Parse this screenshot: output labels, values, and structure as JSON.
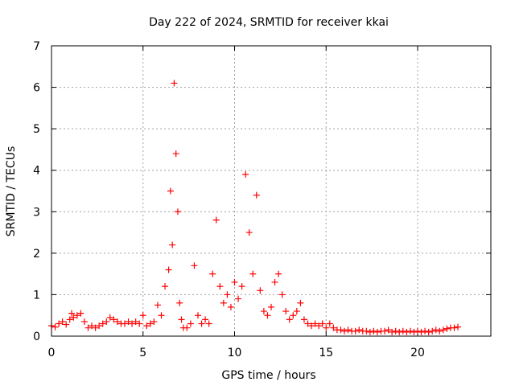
{
  "chart_data": {
    "type": "scatter",
    "title": "Day 222 of 2024, SRMTID for receiver kkai",
    "xlabel": "GPS time / hours",
    "ylabel": "SRMTID / TECUs",
    "xlim": [
      0,
      24
    ],
    "ylim": [
      0,
      7
    ],
    "xticks": [
      0,
      5,
      10,
      15,
      20
    ],
    "yticks": [
      0,
      1,
      2,
      3,
      4,
      5,
      6,
      7
    ],
    "grid": true,
    "marker": "+",
    "series": [
      {
        "name": "SRMTID",
        "color": "#ff0000",
        "x": [
          0.0,
          0.2,
          0.4,
          0.6,
          0.8,
          1.0,
          1.1,
          1.2,
          1.4,
          1.6,
          1.8,
          2.0,
          2.2,
          2.4,
          2.6,
          2.8,
          3.0,
          3.2,
          3.4,
          3.6,
          3.8,
          4.0,
          4.2,
          4.4,
          4.6,
          4.8,
          5.0,
          5.2,
          5.4,
          5.6,
          5.8,
          6.0,
          6.2,
          6.4,
          6.5,
          6.6,
          6.7,
          6.8,
          6.9,
          7.0,
          7.1,
          7.2,
          7.4,
          7.6,
          7.8,
          8.0,
          8.2,
          8.4,
          8.6,
          8.8,
          9.0,
          9.2,
          9.4,
          9.6,
          9.8,
          10.0,
          10.2,
          10.4,
          10.6,
          10.8,
          11.0,
          11.2,
          11.4,
          11.6,
          11.8,
          12.0,
          12.2,
          12.4,
          12.6,
          12.8,
          13.0,
          13.2,
          13.4,
          13.6,
          13.8,
          14.0,
          14.2,
          14.4,
          14.6,
          14.8,
          15.0,
          15.2,
          15.4,
          15.6,
          15.8,
          16.0,
          16.2,
          16.4,
          16.6,
          16.8,
          17.0,
          17.2,
          17.4,
          17.6,
          17.8,
          18.0,
          18.2,
          18.4,
          18.6,
          18.8,
          19.0,
          19.2,
          19.4,
          19.6,
          19.8,
          20.0,
          20.2,
          20.4,
          20.6,
          20.8,
          21.0,
          21.2,
          21.4,
          21.6,
          21.8,
          22.0,
          22.2
        ],
        "y": [
          0.25,
          0.22,
          0.3,
          0.35,
          0.28,
          0.4,
          0.55,
          0.45,
          0.5,
          0.55,
          0.35,
          0.2,
          0.25,
          0.2,
          0.25,
          0.3,
          0.35,
          0.45,
          0.4,
          0.35,
          0.3,
          0.3,
          0.35,
          0.3,
          0.35,
          0.3,
          0.5,
          0.25,
          0.3,
          0.35,
          0.75,
          0.5,
          1.2,
          1.6,
          3.5,
          2.2,
          6.1,
          4.4,
          3.0,
          0.8,
          0.4,
          0.2,
          0.2,
          0.3,
          1.7,
          0.5,
          0.3,
          0.4,
          0.3,
          1.5,
          2.8,
          1.2,
          0.8,
          1.0,
          0.7,
          1.3,
          0.9,
          1.2,
          3.9,
          2.5,
          1.5,
          3.4,
          1.1,
          0.6,
          0.5,
          0.7,
          1.3,
          1.5,
          1.0,
          0.6,
          0.4,
          0.5,
          0.6,
          0.8,
          0.4,
          0.3,
          0.25,
          0.3,
          0.25,
          0.3,
          0.2,
          0.3,
          0.2,
          0.15,
          0.15,
          0.12,
          0.15,
          0.12,
          0.12,
          0.15,
          0.12,
          0.12,
          0.1,
          0.12,
          0.1,
          0.12,
          0.12,
          0.15,
          0.1,
          0.12,
          0.1,
          0.12,
          0.1,
          0.12,
          0.1,
          0.12,
          0.1,
          0.12,
          0.1,
          0.12,
          0.15,
          0.12,
          0.15,
          0.18,
          0.2,
          0.2,
          0.22
        ]
      }
    ]
  }
}
